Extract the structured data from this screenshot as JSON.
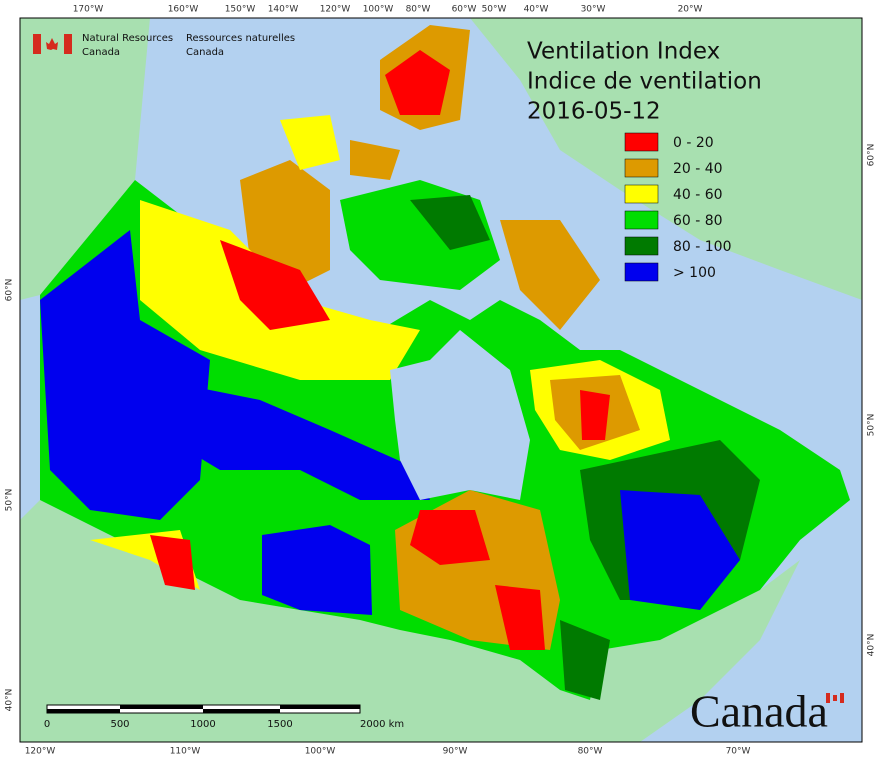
{
  "header": {
    "agency_en": [
      "Natural Resources",
      "Canada"
    ],
    "agency_fr": [
      "Ressources naturelles",
      "Canada"
    ]
  },
  "title": [
    "Ventilation Index",
    "Indice de ventilation",
    "2016-05-12"
  ],
  "legend": [
    {
      "label": "0 - 20",
      "color": "#ff0000"
    },
    {
      "label": "20 - 40",
      "color": "#dd9a00"
    },
    {
      "label": "40 - 60",
      "color": "#ffff00"
    },
    {
      "label": "60 - 80",
      "color": "#00dd00"
    },
    {
      "label": "80 - 100",
      "color": "#007a00"
    },
    {
      "label": "> 100",
      "color": "#0000ee"
    }
  ],
  "top_labels": [
    "170°W",
    "160°W",
    "150°W",
    "140°W",
    "120°W",
    "100°W",
    "80°W",
    "60°W",
    "50°W",
    "40°W",
    "30°W",
    "20°W"
  ],
  "bottom_labels": [
    "120°W",
    "110°W",
    "100°W",
    "90°W",
    "80°W",
    "70°W"
  ],
  "left_labels": [
    "60°N",
    "50°N",
    "40°N"
  ],
  "right_labels": [
    "60°N",
    "50°N",
    "40°N"
  ],
  "scale_bar": {
    "labels": [
      "0",
      "500",
      "1000",
      "1500",
      "2000 km"
    ]
  },
  "wordmark": "Canada"
}
